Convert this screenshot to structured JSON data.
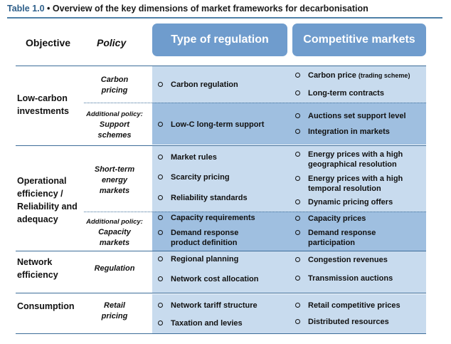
{
  "title": {
    "number": "Table 1.0",
    "separator": " • ",
    "text": "Overview of the key dimensions of market frameworks for decarbonisation"
  },
  "headers": {
    "objective": "Objective",
    "policy": "Policy",
    "regulation": "Type of regulation",
    "markets": "Competitive markets"
  },
  "colors": {
    "header_box": "#6f9ccd",
    "band_light": "#c8dbee",
    "band_dark": "#9fbfe0",
    "rule": "#3d6d99"
  },
  "rows": {
    "low_carbon": {
      "objective": [
        "Low-carbon",
        "investments"
      ],
      "carbon_pricing": {
        "policy": [
          "Carbon",
          "pricing"
        ],
        "regulation": [
          "Carbon regulation"
        ],
        "markets": [
          "Carbon price",
          "(trading scheme)",
          "Long-term contracts"
        ]
      },
      "support": {
        "additional": "Additional policy:",
        "policy": [
          "Support",
          "schemes"
        ],
        "regulation": [
          "Low-C long-term support"
        ],
        "markets": [
          "Auctions set support level",
          "Integration in markets"
        ]
      }
    },
    "operational": {
      "objective": [
        "Operational",
        "efficiency /",
        "Reliability and",
        "adequacy"
      ],
      "short_term": {
        "policy": [
          "Short-term",
          "energy",
          "markets"
        ],
        "regulation": [
          "Market rules",
          "Scarcity pricing",
          "Reliability standards"
        ],
        "markets": [
          "Energy prices with a high",
          "geographical resolution",
          "Energy prices with a high",
          "temporal resolution",
          "Dynamic pricing offers"
        ]
      },
      "capacity": {
        "additional": "Additional policy:",
        "policy": [
          "Capacity",
          "markets"
        ],
        "regulation": [
          "Capacity requirements",
          "Demand response",
          "product definition"
        ],
        "markets": [
          "Capacity prices",
          "Demand response",
          "participation"
        ]
      }
    },
    "network": {
      "objective": [
        "Network",
        "efficiency"
      ],
      "policy": [
        "Regulation"
      ],
      "regulation": [
        "Regional planning",
        "Network cost allocation"
      ],
      "markets": [
        "Congestion revenues",
        "Transmission auctions"
      ]
    },
    "consumption": {
      "objective": [
        "Consumption"
      ],
      "policy": [
        "Retail",
        "pricing"
      ],
      "regulation": [
        "Network tariff structure",
        "Taxation and levies"
      ],
      "markets": [
        "Retail competitive prices",
        "Distributed resources"
      ]
    }
  }
}
